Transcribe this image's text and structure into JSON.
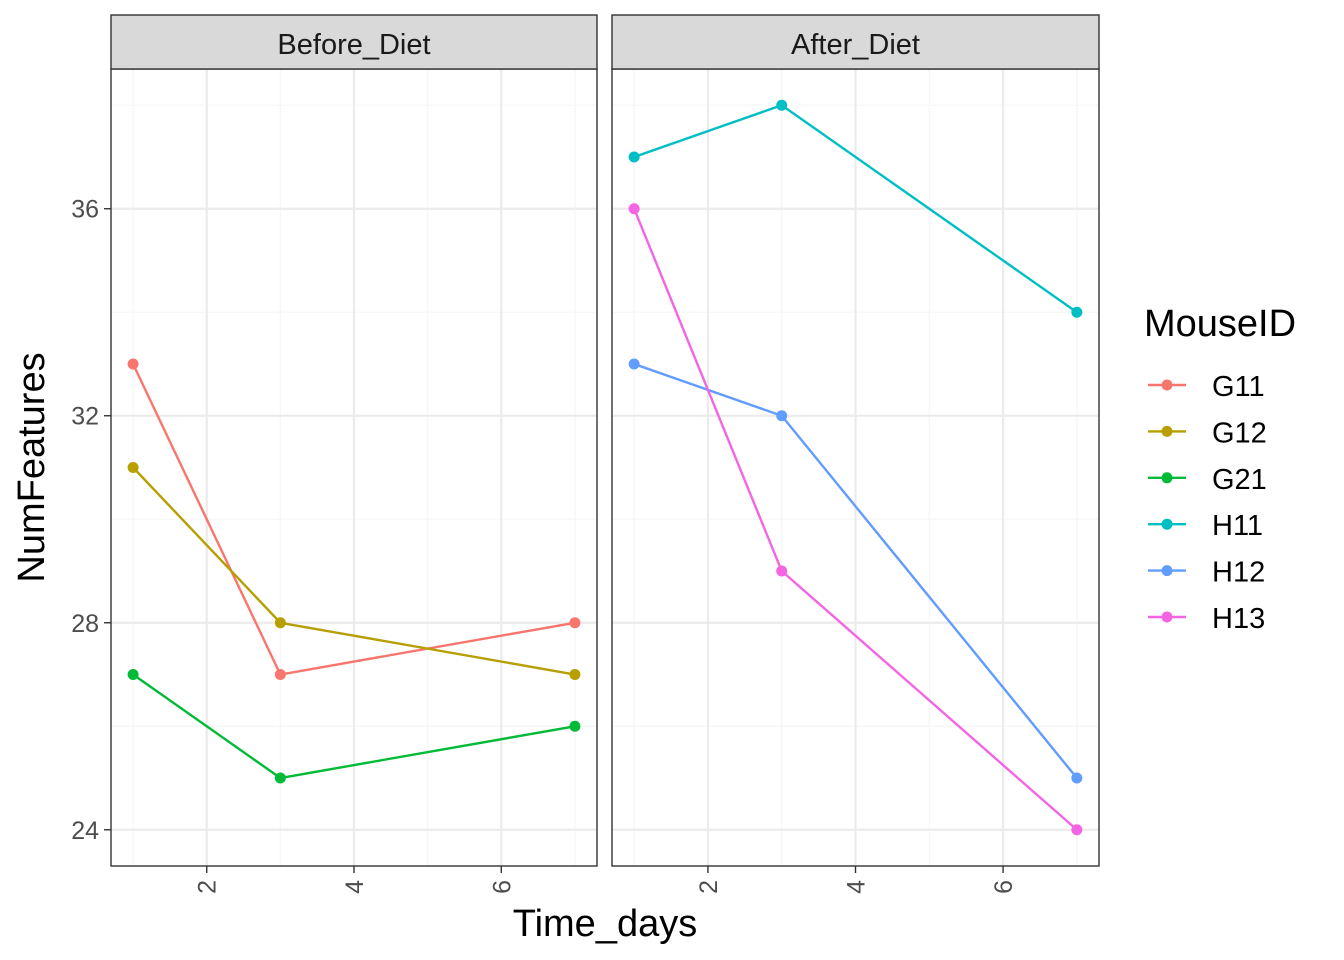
{
  "chart_data": {
    "type": "line",
    "facet_variable": "Diet",
    "panels": [
      {
        "label": "Before_Diet",
        "series": [
          {
            "name": "G11",
            "x": [
              1,
              3,
              7
            ],
            "y": [
              33,
              27,
              28
            ]
          },
          {
            "name": "G12",
            "x": [
              1,
              3,
              7
            ],
            "y": [
              31,
              28,
              27
            ]
          },
          {
            "name": "G21",
            "x": [
              1,
              3,
              7
            ],
            "y": [
              27,
              25,
              26
            ]
          }
        ]
      },
      {
        "label": "After_Diet",
        "series": [
          {
            "name": "H11",
            "x": [
              1,
              3,
              7
            ],
            "y": [
              37,
              38,
              34
            ]
          },
          {
            "name": "H12",
            "x": [
              1,
              3,
              7
            ],
            "y": [
              33,
              32,
              25
            ]
          },
          {
            "name": "H13",
            "x": [
              1,
              3,
              7
            ],
            "y": [
              36,
              29,
              24
            ]
          }
        ]
      }
    ],
    "xlabel": "Time_days",
    "ylabel": "NumFeatures",
    "xlim": [
      0.7,
      7.3
    ],
    "ylim": [
      23.3,
      38.7
    ],
    "x_ticks": [
      2,
      4,
      6
    ],
    "y_ticks": [
      24,
      28,
      32,
      36
    ],
    "x_tick_labels": [
      "2",
      "4",
      "6"
    ],
    "y_tick_labels": [
      "24",
      "28",
      "32",
      "36"
    ],
    "x_tick_rotation": "vertical",
    "grid": true,
    "legend": {
      "title": "MouseID",
      "position": "right",
      "entries": [
        {
          "name": "G11",
          "color": "#F8766D"
        },
        {
          "name": "G12",
          "color": "#B79F00"
        },
        {
          "name": "G21",
          "color": "#00BA38"
        },
        {
          "name": "H11",
          "color": "#00BFC4"
        },
        {
          "name": "H12",
          "color": "#619CFF"
        },
        {
          "name": "H13",
          "color": "#F564E3"
        }
      ]
    },
    "colors": {
      "G11": "#F8766D",
      "G12": "#B79F00",
      "G21": "#00BA38",
      "H11": "#00BFC4",
      "H12": "#619CFF",
      "H13": "#F564E3"
    },
    "style": {
      "strip_fill": "#D9D9D9",
      "grid_major": "#EBEBEB",
      "grid_minor": "#F5F5F5",
      "panel_border": "#333333",
      "text_color": "#000000",
      "tick_color": "#4D4D4D"
    }
  }
}
